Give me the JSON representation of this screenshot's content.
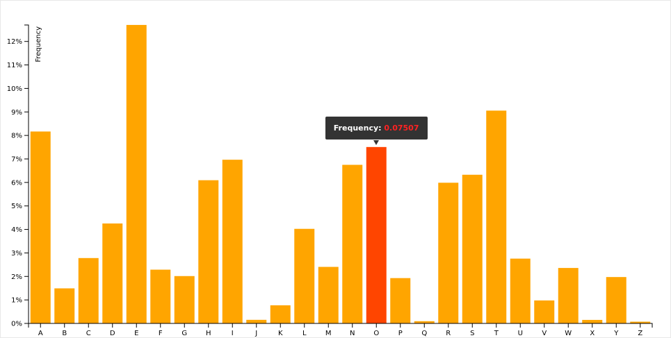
{
  "chart_data": {
    "type": "bar",
    "ylabel": "Frequency",
    "ylim": [
      0,
      0.127
    ],
    "categories": [
      "A",
      "B",
      "C",
      "D",
      "E",
      "F",
      "G",
      "H",
      "I",
      "J",
      "K",
      "L",
      "M",
      "N",
      "O",
      "P",
      "Q",
      "R",
      "S",
      "T",
      "U",
      "V",
      "W",
      "X",
      "Y",
      "Z"
    ],
    "values": [
      0.08167,
      0.01492,
      0.02782,
      0.04253,
      0.12702,
      0.02288,
      0.02015,
      0.06094,
      0.06966,
      0.00153,
      0.00772,
      0.04025,
      0.02406,
      0.06749,
      0.07507,
      0.01929,
      0.00095,
      0.05987,
      0.06327,
      0.09056,
      0.02758,
      0.00978,
      0.0236,
      0.0015,
      0.01974,
      0.00074
    ],
    "yticks": [
      0,
      0.01,
      0.02,
      0.03,
      0.04,
      0.05,
      0.06,
      0.07,
      0.08,
      0.09,
      0.1,
      0.11,
      0.12
    ],
    "ytick_labels": [
      "0%",
      "1%",
      "2%",
      "3%",
      "4%",
      "5%",
      "6%",
      "7%",
      "8%",
      "9%",
      "10%",
      "11%",
      "12%"
    ],
    "bar_color": "#ffa500",
    "highlight_color": "#ff4500",
    "highlighted_category": "O"
  },
  "tooltip": {
    "label": "Frequency:",
    "value": "0.07507"
  }
}
